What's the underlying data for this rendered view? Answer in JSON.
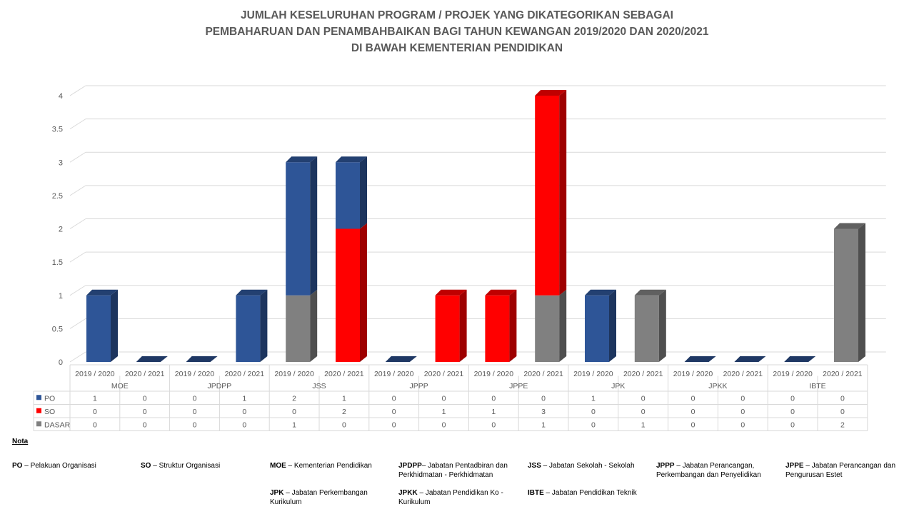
{
  "chart_data": {
    "type": "bar",
    "stacked": true,
    "three_d": true,
    "title_lines": [
      "JUMLAH KESELURUHAN PROGRAM / PROJEK YANG DIKATEGORIKAN SEBAGAI",
      "PEMBAHARUAN DAN PENAMBAHBAIKAN BAGI TAHUN  KEWANGAN 2019/2020 DAN 2020/2021",
      "DI BAWAH KEMENTERIAN PENDIDIKAN"
    ],
    "ylim": [
      0,
      4
    ],
    "yticks": [
      "0",
      "0.5",
      "1",
      "1.5",
      "2",
      "2.5",
      "3",
      "3.5",
      "4"
    ],
    "ytick_values": [
      0,
      0.5,
      1,
      1.5,
      2,
      2.5,
      3,
      3.5,
      4
    ],
    "grid": true,
    "groups": [
      "MOE",
      "JPDPP",
      "JSS",
      "JPPP",
      "JPPE",
      "JPK",
      "JPKK",
      "IBTE"
    ],
    "categories": [
      "2019 / 2020",
      "2020 / 2021",
      "2019 / 2020",
      "2020 / 2021",
      "2019 / 2020",
      "2020 / 2021",
      "2019 / 2020",
      "2020 / 2021",
      "2019 / 2020",
      "2020 / 2021",
      "2019 / 2020",
      "2020 / 2021",
      "2019 / 2020",
      "2020 / 2021",
      "2019 / 2020",
      "2020 / 2021"
    ],
    "series": [
      {
        "name": "PO",
        "color": "#2E5597",
        "values": [
          1,
          0,
          0,
          1,
          2,
          1,
          0,
          0,
          0,
          0,
          1,
          0,
          0,
          0,
          0,
          0
        ]
      },
      {
        "name": "SO",
        "color": "#FF0000",
        "values": [
          0,
          0,
          0,
          0,
          0,
          2,
          0,
          1,
          1,
          3,
          0,
          0,
          0,
          0,
          0,
          0
        ]
      },
      {
        "name": "DASAR",
        "color": "#808080",
        "values": [
          0,
          0,
          0,
          0,
          1,
          0,
          0,
          0,
          0,
          1,
          0,
          1,
          0,
          0,
          0,
          2
        ]
      }
    ],
    "stack_order_bottom_to_top": [
      "DASAR",
      "SO",
      "PO"
    ],
    "legend": "data-table"
  },
  "notes": {
    "heading": "Nota",
    "items": [
      {
        "abbr": "PO",
        "text": "Pelakuan Organisasi"
      },
      {
        "abbr": "SO",
        "text": "Struktur Organisasi"
      },
      {
        "abbr": "MOE",
        "text": "Kementerian Pendidikan"
      },
      {
        "abbr": "JPDPP",
        "text": "Jabatan Pentadbiran dan Perkhidmatan - Perkhidmatan"
      },
      {
        "abbr": "JSS",
        "text": "Jabatan Sekolah - Sekolah"
      },
      {
        "abbr": "JPPP",
        "text": "Jabatan Perancangan, Perkembangan dan Penyelidikan"
      },
      {
        "abbr": "JPPE",
        "text": "Jabatan Perancangan dan Pengurusan Estet"
      },
      {
        "abbr": "JPK",
        "text": "Jabatan Perkembangan Kurikulum"
      },
      {
        "abbr": "JPKK",
        "text": "Jabatan Pendidikan Ko - Kurikulum"
      },
      {
        "abbr": "IBTE",
        "text": "Jabatan Pendidikan Teknik"
      }
    ]
  }
}
